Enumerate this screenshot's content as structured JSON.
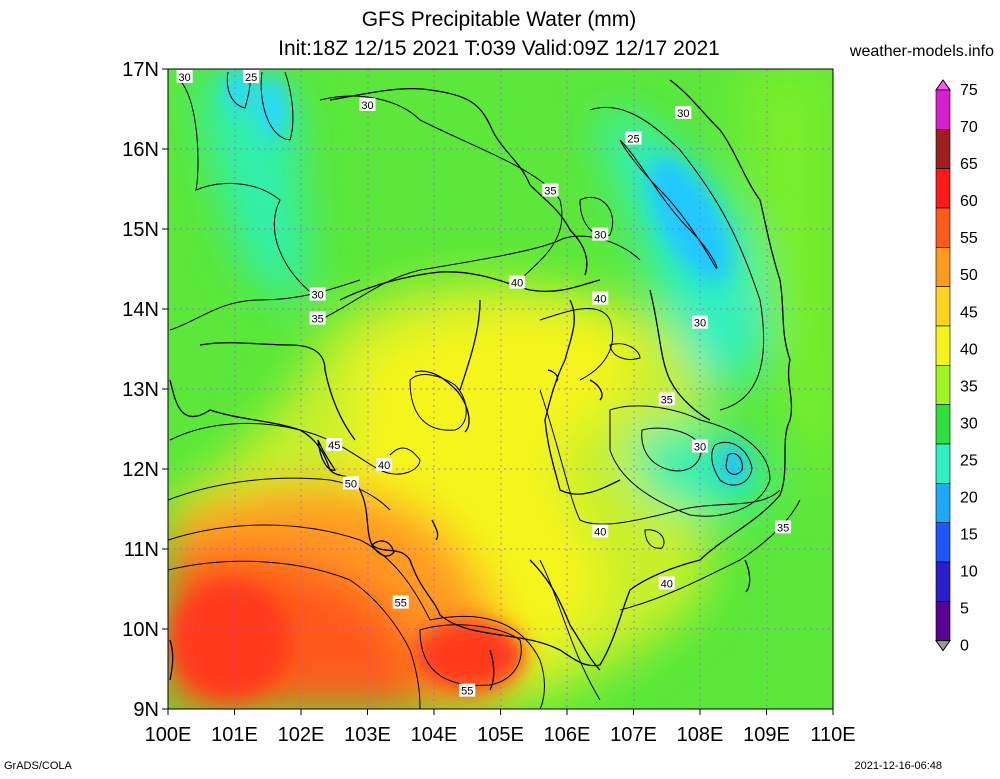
{
  "title": {
    "line1": "GFS Precipitable Water (mm)",
    "line2": "Init:18Z 12/15 2021 T:039 Valid:09Z 12/17 2021"
  },
  "site": "weather-models.info",
  "footer": {
    "left": "GrADS/COLA",
    "right": "2021-12-16-06:48"
  },
  "map": {
    "lon_range": [
      100,
      110
    ],
    "lat_range": [
      9,
      17
    ],
    "lon_labels": [
      "100E",
      "101E",
      "102E",
      "103E",
      "104E",
      "105E",
      "106E",
      "107E",
      "108E",
      "109E",
      "110E"
    ],
    "lat_labels": [
      "17N",
      "16N",
      "15N",
      "14N",
      "13N",
      "12N",
      "11N",
      "10N",
      "9N"
    ],
    "grid": true,
    "contour_labels": [
      {
        "text": "30",
        "lon": 100.25,
        "lat": 16.9
      },
      {
        "text": "25",
        "lon": 101.25,
        "lat": 16.9
      },
      {
        "text": "30",
        "lon": 103.0,
        "lat": 16.55
      },
      {
        "text": "30",
        "lon": 107.75,
        "lat": 16.45
      },
      {
        "text": "25",
        "lon": 107.0,
        "lat": 16.13
      },
      {
        "text": "35",
        "lon": 105.75,
        "lat": 15.48
      },
      {
        "text": "30",
        "lon": 106.5,
        "lat": 14.93
      },
      {
        "text": "40",
        "lon": 105.25,
        "lat": 14.33
      },
      {
        "text": "40",
        "lon": 106.5,
        "lat": 14.13
      },
      {
        "text": "30",
        "lon": 102.25,
        "lat": 14.18
      },
      {
        "text": "35",
        "lon": 102.25,
        "lat": 13.88
      },
      {
        "text": "30",
        "lon": 108.0,
        "lat": 13.83
      },
      {
        "text": "35",
        "lon": 107.5,
        "lat": 12.87
      },
      {
        "text": "45",
        "lon": 102.5,
        "lat": 12.3
      },
      {
        "text": "30",
        "lon": 108.0,
        "lat": 12.28
      },
      {
        "text": "40",
        "lon": 103.25,
        "lat": 12.05
      },
      {
        "text": "50",
        "lon": 102.75,
        "lat": 11.82
      },
      {
        "text": "35",
        "lon": 109.25,
        "lat": 11.27
      },
      {
        "text": "40",
        "lon": 106.5,
        "lat": 11.22
      },
      {
        "text": "40",
        "lon": 107.5,
        "lat": 10.57
      },
      {
        "text": "55",
        "lon": 103.5,
        "lat": 10.33
      },
      {
        "text": "55",
        "lon": 104.5,
        "lat": 9.23
      }
    ]
  },
  "colorbar": {
    "labels": [
      "75",
      "70",
      "65",
      "60",
      "55",
      "50",
      "45",
      "40",
      "35",
      "30",
      "25",
      "20",
      "15",
      "10",
      "5",
      "0"
    ],
    "colors": [
      "#ff55ff",
      "#d81fcf",
      "#a01e1e",
      "#ff1a1a",
      "#ff5a1a",
      "#ff9a20",
      "#ffd21e",
      "#f5f51e",
      "#9ef523",
      "#2ee03c",
      "#2ef0c0",
      "#1fa8ff",
      "#1e55ff",
      "#2b1ec8",
      "#5a0096",
      "#9a9a9a"
    ]
  }
}
